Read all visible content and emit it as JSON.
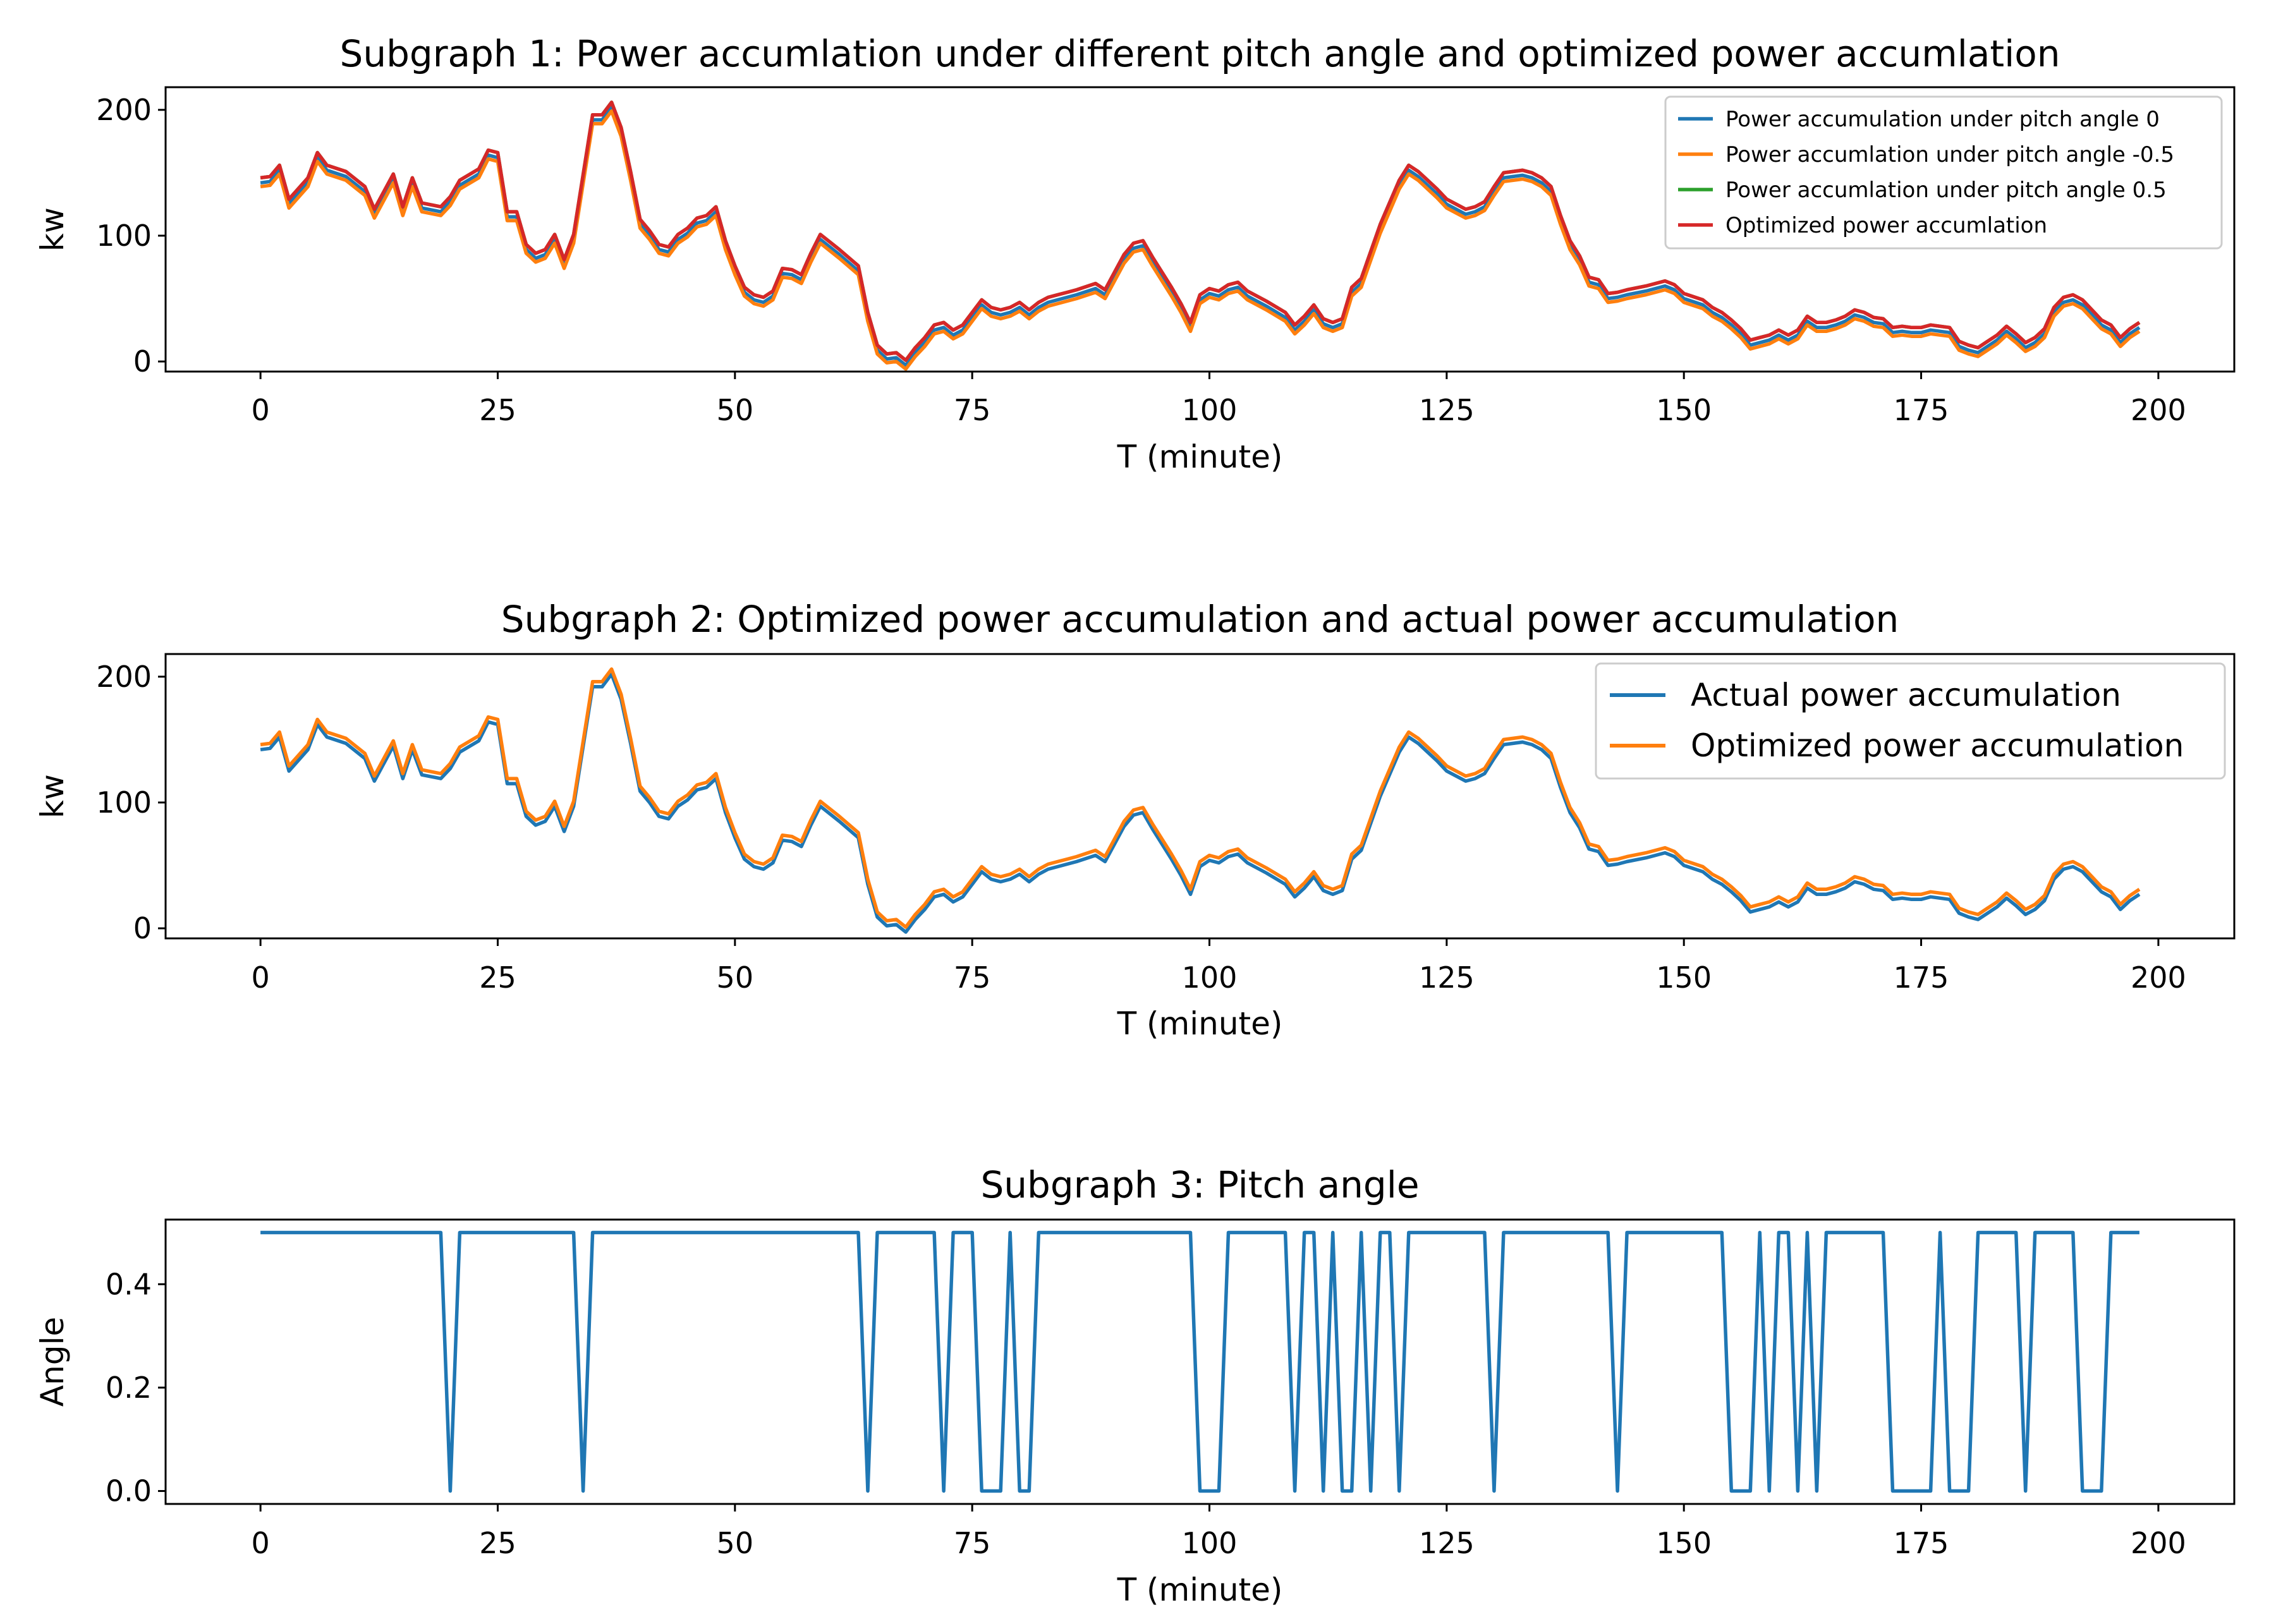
{
  "chart_data": [
    {
      "type": "line",
      "title": "Subgraph 1: Power accumlation under different pitch angle and optimized power accumlation",
      "xlabel": "T (minute)",
      "ylabel": "kw",
      "xlim": [
        -10,
        208
      ],
      "ylim": [
        -8,
        218
      ],
      "xticks": [
        0,
        25,
        50,
        75,
        100,
        125,
        150,
        175,
        200
      ],
      "yticks": [
        0,
        100,
        200
      ],
      "legend_position": "top-right",
      "base_profile": [
        [
          0,
          145
        ],
        [
          1,
          146
        ],
        [
          2,
          155
        ],
        [
          3,
          128
        ],
        [
          5,
          145
        ],
        [
          6,
          165
        ],
        [
          7,
          155
        ],
        [
          9,
          150
        ],
        [
          11,
          138
        ],
        [
          12,
          120
        ],
        [
          14,
          148
        ],
        [
          15,
          122
        ],
        [
          16,
          145
        ],
        [
          17,
          125
        ],
        [
          19,
          122
        ],
        [
          20,
          130
        ],
        [
          21,
          143
        ],
        [
          23,
          152
        ],
        [
          24,
          167
        ],
        [
          25,
          165
        ],
        [
          26,
          118
        ],
        [
          27,
          118
        ],
        [
          28,
          92
        ],
        [
          29,
          85
        ],
        [
          30,
          88
        ],
        [
          31,
          100
        ],
        [
          32,
          80
        ],
        [
          33,
          100
        ],
        [
          35,
          195
        ],
        [
          36,
          195
        ],
        [
          37,
          205
        ],
        [
          38,
          185
        ],
        [
          39,
          150
        ],
        [
          40,
          112
        ],
        [
          41,
          103
        ],
        [
          42,
          92
        ],
        [
          43,
          90
        ],
        [
          44,
          100
        ],
        [
          45,
          105
        ],
        [
          46,
          113
        ],
        [
          47,
          115
        ],
        [
          48,
          122
        ],
        [
          49,
          95
        ],
        [
          50,
          75
        ],
        [
          51,
          58
        ],
        [
          52,
          52
        ],
        [
          53,
          50
        ],
        [
          54,
          55
        ],
        [
          55,
          73
        ],
        [
          56,
          72
        ],
        [
          57,
          68
        ],
        [
          58,
          85
        ],
        [
          59,
          100
        ],
        [
          61,
          88
        ],
        [
          63,
          75
        ],
        [
          64,
          38
        ],
        [
          65,
          12
        ],
        [
          66,
          5
        ],
        [
          67,
          6
        ],
        [
          68,
          0
        ],
        [
          69,
          10
        ],
        [
          70,
          18
        ],
        [
          71,
          28
        ],
        [
          72,
          30
        ],
        [
          73,
          24
        ],
        [
          74,
          28
        ],
        [
          76,
          48
        ],
        [
          77,
          42
        ],
        [
          78,
          40
        ],
        [
          79,
          42
        ],
        [
          80,
          46
        ],
        [
          81,
          40
        ],
        [
          82,
          46
        ],
        [
          83,
          50
        ],
        [
          84,
          52
        ],
        [
          85,
          54
        ],
        [
          86,
          56
        ],
        [
          88,
          61
        ],
        [
          89,
          56
        ],
        [
          90,
          70
        ],
        [
          91,
          84
        ],
        [
          92,
          93
        ],
        [
          93,
          95
        ],
        [
          94,
          82
        ],
        [
          96,
          58
        ],
        [
          97,
          45
        ],
        [
          98,
          30
        ],
        [
          99,
          52
        ],
        [
          100,
          57
        ],
        [
          101,
          55
        ],
        [
          102,
          60
        ],
        [
          103,
          62
        ],
        [
          104,
          55
        ],
        [
          106,
          47
        ],
        [
          108,
          38
        ],
        [
          109,
          28
        ],
        [
          110,
          35
        ],
        [
          111,
          44
        ],
        [
          112,
          33
        ],
        [
          113,
          30
        ],
        [
          114,
          33
        ],
        [
          115,
          58
        ],
        [
          116,
          65
        ],
        [
          118,
          108
        ],
        [
          120,
          143
        ],
        [
          121,
          155
        ],
        [
          122,
          150
        ],
        [
          123,
          143
        ],
        [
          124,
          136
        ],
        [
          125,
          128
        ],
        [
          127,
          120
        ],
        [
          128,
          122
        ],
        [
          129,
          126
        ],
        [
          130,
          138
        ],
        [
          131,
          149
        ],
        [
          133,
          151
        ],
        [
          134,
          149
        ],
        [
          135,
          145
        ],
        [
          136,
          138
        ],
        [
          137,
          115
        ],
        [
          138,
          95
        ],
        [
          139,
          83
        ],
        [
          140,
          66
        ],
        [
          141,
          64
        ],
        [
          142,
          53
        ],
        [
          143,
          54
        ],
        [
          144,
          56
        ],
        [
          146,
          59
        ],
        [
          148,
          63
        ],
        [
          149,
          60
        ],
        [
          150,
          53
        ],
        [
          152,
          48
        ],
        [
          153,
          42
        ],
        [
          154,
          38
        ],
        [
          155,
          32
        ],
        [
          156,
          25
        ],
        [
          157,
          16
        ],
        [
          158,
          18
        ],
        [
          159,
          20
        ],
        [
          160,
          24
        ],
        [
          161,
          20
        ],
        [
          162,
          24
        ],
        [
          163,
          35
        ],
        [
          164,
          30
        ],
        [
          165,
          30
        ],
        [
          166,
          32
        ],
        [
          167,
          35
        ],
        [
          168,
          40
        ],
        [
          169,
          38
        ],
        [
          170,
          34
        ],
        [
          171,
          33
        ],
        [
          172,
          26
        ],
        [
          173,
          27
        ],
        [
          174,
          26
        ],
        [
          175,
          26
        ],
        [
          176,
          28
        ],
        [
          178,
          26
        ],
        [
          179,
          15
        ],
        [
          180,
          12
        ],
        [
          181,
          10
        ],
        [
          182,
          15
        ],
        [
          183,
          20
        ],
        [
          184,
          27
        ],
        [
          185,
          21
        ],
        [
          186,
          14
        ],
        [
          187,
          18
        ],
        [
          188,
          25
        ],
        [
          189,
          42
        ],
        [
          190,
          50
        ],
        [
          191,
          52
        ],
        [
          192,
          48
        ],
        [
          193,
          40
        ],
        [
          194,
          32
        ],
        [
          195,
          28
        ],
        [
          196,
          18
        ],
        [
          197,
          25
        ],
        [
          198,
          30
        ]
      ],
      "series": [
        {
          "name": "Power accumulation under pitch angle 0",
          "color": "#1f77b4",
          "offset": -3
        },
        {
          "name": "Power accumlation under pitch angle -0.5",
          "color": "#ff7f0e",
          "offset": -6
        },
        {
          "name": "Power accumlation under pitch angle 0.5",
          "color": "#2ca02c",
          "offset": 1
        },
        {
          "name": "Optimized power accumlation",
          "color": "#d62728",
          "offset": 1
        }
      ]
    },
    {
      "type": "line",
      "title": "Subgraph 2: Optimized power accumulation and actual power accumulation",
      "xlabel": "T (minute)",
      "ylabel": "kw",
      "xlim": [
        -10,
        208
      ],
      "ylim": [
        -8,
        218
      ],
      "xticks": [
        0,
        25,
        50,
        75,
        100,
        125,
        150,
        175,
        200
      ],
      "yticks": [
        0,
        100,
        200
      ],
      "legend_position": "top-right",
      "series": [
        {
          "name": "Actual power accumulation",
          "color": "#1f77b4",
          "offset": -3
        },
        {
          "name": "Optimized power accumulation",
          "color": "#ff7f0e",
          "offset": 1
        }
      ]
    },
    {
      "type": "line",
      "title": "Subgraph 3: Pitch angle",
      "xlabel": "T (minute)",
      "ylabel": "Angle",
      "xlim": [
        -10,
        208
      ],
      "ylim": [
        -0.025,
        0.525
      ],
      "xticks": [
        0,
        25,
        50,
        75,
        100,
        125,
        150,
        175,
        200
      ],
      "yticks": [
        0.0,
        0.2,
        0.4
      ],
      "series": [
        {
          "name": "Pitch angle",
          "color": "#1f77b4",
          "points": [
            [
              0,
              0.5
            ],
            [
              19,
              0.5
            ],
            [
              20,
              0
            ],
            [
              21,
              0.5
            ],
            [
              33,
              0.5
            ],
            [
              34,
              0
            ],
            [
              35,
              0.5
            ],
            [
              63,
              0.5
            ],
            [
              64,
              0
            ],
            [
              65,
              0.5
            ],
            [
              71,
              0.5
            ],
            [
              72,
              0
            ],
            [
              73,
              0.5
            ],
            [
              75,
              0.5
            ],
            [
              76,
              0
            ],
            [
              78,
              0
            ],
            [
              79,
              0.5
            ],
            [
              80,
              0
            ],
            [
              81,
              0
            ],
            [
              82,
              0.5
            ],
            [
              98,
              0.5
            ],
            [
              99,
              0
            ],
            [
              101,
              0
            ],
            [
              102,
              0.5
            ],
            [
              108,
              0.5
            ],
            [
              109,
              0
            ],
            [
              110,
              0.5
            ],
            [
              111,
              0.5
            ],
            [
              112,
              0
            ],
            [
              113,
              0.5
            ],
            [
              114,
              0
            ],
            [
              115,
              0
            ],
            [
              116,
              0.5
            ],
            [
              117,
              0
            ],
            [
              118,
              0.5
            ],
            [
              119,
              0.5
            ],
            [
              120,
              0
            ],
            [
              121,
              0.5
            ],
            [
              129,
              0.5
            ],
            [
              130,
              0
            ],
            [
              131,
              0.5
            ],
            [
              142,
              0.5
            ],
            [
              143,
              0
            ],
            [
              144,
              0.5
            ],
            [
              154,
              0.5
            ],
            [
              155,
              0
            ],
            [
              157,
              0
            ],
            [
              158,
              0.5
            ],
            [
              159,
              0
            ],
            [
              160,
              0.5
            ],
            [
              161,
              0.5
            ],
            [
              162,
              0
            ],
            [
              163,
              0.5
            ],
            [
              164,
              0
            ],
            [
              165,
              0.5
            ],
            [
              171,
              0.5
            ],
            [
              172,
              0
            ],
            [
              176,
              0
            ],
            [
              177,
              0.5
            ],
            [
              178,
              0
            ],
            [
              180,
              0
            ],
            [
              181,
              0.5
            ],
            [
              185,
              0.5
            ],
            [
              186,
              0
            ],
            [
              187,
              0.5
            ],
            [
              191,
              0.5
            ],
            [
              192,
              0
            ],
            [
              194,
              0
            ],
            [
              195,
              0.5
            ],
            [
              198,
              0.5
            ]
          ]
        }
      ]
    }
  ]
}
